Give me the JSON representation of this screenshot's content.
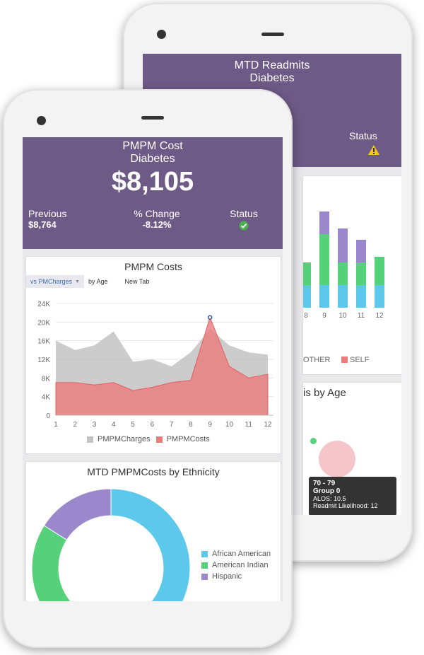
{
  "back_phone": {
    "kpi": {
      "title_line1": "MTD Readmits",
      "title_line2": "Diabetes",
      "status_label": "Status",
      "status_icon": "warning-icon"
    },
    "chart": {
      "x_tick_labels": [
        "8",
        "9",
        "10",
        "11",
        "12"
      ],
      "legend": [
        "OTHER",
        "SELF"
      ]
    },
    "bubble_chart": {
      "title_fragment": "is by Age",
      "tooltip": {
        "range": "70 - 79",
        "group": "Group 0",
        "alos": "ALOS: 10.5",
        "likelihood": "Readmit Likelihood: 12"
      }
    }
  },
  "front_phone": {
    "kpi": {
      "title_line1": "PMPM Cost",
      "title_line2": "Diabetes",
      "value": "$8,105",
      "previous_label": "Previous",
      "previous_value": "$8,764",
      "change_label": "% Change",
      "change_value": "-8.12%",
      "status_label": "Status",
      "status_icon": "check-circle-icon"
    },
    "area_chart": {
      "title": "PMPM Costs",
      "tabs": [
        "vs PMCharges",
        "by Age",
        "New Tab"
      ]
    },
    "donut_chart": {
      "title": "MTD PMPMCosts by Ethnicity",
      "legend": [
        "African American",
        "American Indian",
        "Hispanic"
      ]
    }
  },
  "colors": {
    "purple": "#6e5a86",
    "charges": "#c3c3c3",
    "costs": "#ec7b7b",
    "african_american": "#5bc8ec",
    "american_indian": "#54d179",
    "hispanic": "#9a87cc"
  },
  "chart_data": [
    {
      "type": "area",
      "title": "PMPM Costs",
      "x": [
        1,
        2,
        3,
        4,
        5,
        6,
        7,
        8,
        9,
        10,
        11,
        12
      ],
      "series": [
        {
          "name": "PMPMCharges",
          "values": [
            16000,
            14000,
            15000,
            18000,
            11500,
            12000,
            10500,
            13500,
            18500,
            15000,
            13500,
            13000
          ]
        },
        {
          "name": "PMPMCosts",
          "values": [
            7000,
            7000,
            6500,
            7000,
            5300,
            6000,
            7000,
            7500,
            21000,
            10500,
            8000,
            8800
          ]
        }
      ],
      "ylim": [
        0,
        24000
      ],
      "yticks": [
        "0",
        "4K",
        "8K",
        "12K",
        "16K",
        "20K",
        "24K"
      ],
      "legend": "bottom",
      "grid": true
    },
    {
      "type": "pie",
      "title": "MTD PMPMCosts by Ethnicity",
      "categories": [
        "African American",
        "American Indian",
        "Hispanic"
      ],
      "values": [
        0.5,
        0.34,
        0.16
      ]
    },
    {
      "type": "bar",
      "title": "",
      "categories": [
        "8",
        "9",
        "10",
        "11",
        "12"
      ],
      "series": [
        {
          "name": "Hispanic",
          "values": [
            0,
            4,
            6,
            4,
            0
          ]
        },
        {
          "name": "American Indian",
          "values": [
            4,
            9,
            4,
            4,
            5
          ]
        },
        {
          "name": "African American",
          "values": [
            4,
            4,
            4,
            4,
            4
          ]
        }
      ],
      "legend_visible": [
        "OTHER",
        "SELF"
      ]
    }
  ]
}
